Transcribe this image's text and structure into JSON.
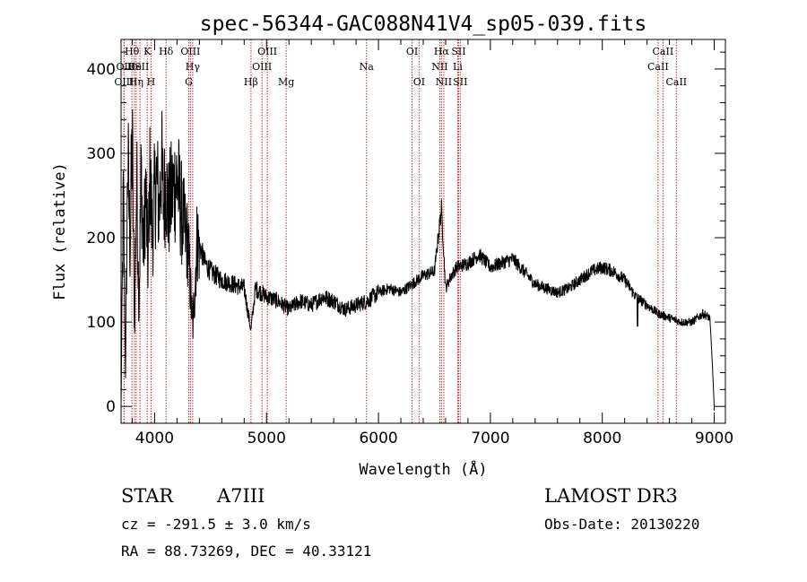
{
  "chart_data": {
    "type": "line",
    "title": "spec-56344-GAC088N41V4_sp05-039.fits",
    "xlabel": "Wavelength (Å)",
    "ylabel": "Flux (relative)",
    "xlim": [
      3700,
      9100
    ],
    "ylim": [
      -200,
      4350
    ],
    "xticks": [
      4000,
      5000,
      6000,
      7000,
      8000,
      9000
    ],
    "yticks": [
      0,
      1000,
      2000,
      3000,
      4000
    ],
    "ytick_labels": [
      "0",
      "100",
      "200",
      "300",
      "400"
    ],
    "series": [
      {
        "name": "flux",
        "anchors": [
          [
            3700,
            0
          ],
          [
            3720,
            2500
          ],
          [
            3740,
            400
          ],
          [
            3760,
            3000
          ],
          [
            3780,
            1900
          ],
          [
            3800,
            3200
          ],
          [
            3820,
            900
          ],
          [
            3840,
            2700
          ],
          [
            3860,
            1200
          ],
          [
            3880,
            2800
          ],
          [
            3900,
            1800
          ],
          [
            3920,
            2600
          ],
          [
            3940,
            1700
          ],
          [
            3960,
            2800
          ],
          [
            3980,
            2000
          ],
          [
            4000,
            2500
          ],
          [
            4020,
            2700
          ],
          [
            4040,
            2300
          ],
          [
            4060,
            2900
          ],
          [
            4080,
            2400
          ],
          [
            4100,
            2700
          ],
          [
            4120,
            2300
          ],
          [
            4150,
            2500
          ],
          [
            4200,
            2700
          ],
          [
            4250,
            2200
          ],
          [
            4300,
            1900
          ],
          [
            4340,
            900
          ],
          [
            4380,
            2000
          ],
          [
            4450,
            1700
          ],
          [
            4500,
            1600
          ],
          [
            4600,
            1500
          ],
          [
            4700,
            1450
          ],
          [
            4800,
            1400
          ],
          [
            4861,
            900
          ],
          [
            4900,
            1400
          ],
          [
            5000,
            1300
          ],
          [
            5100,
            1250
          ],
          [
            5200,
            1150
          ],
          [
            5300,
            1250
          ],
          [
            5400,
            1200
          ],
          [
            5500,
            1300
          ],
          [
            5600,
            1250
          ],
          [
            5700,
            1150
          ],
          [
            5800,
            1200
          ],
          [
            5900,
            1250
          ],
          [
            6000,
            1350
          ],
          [
            6100,
            1400
          ],
          [
            6200,
            1350
          ],
          [
            6300,
            1450
          ],
          [
            6400,
            1550
          ],
          [
            6500,
            1600
          ],
          [
            6563,
            2350
          ],
          [
            6600,
            1400
          ],
          [
            6650,
            1550
          ],
          [
            6700,
            1650
          ],
          [
            6800,
            1700
          ],
          [
            6900,
            1800
          ],
          [
            7000,
            1650
          ],
          [
            7100,
            1700
          ],
          [
            7200,
            1750
          ],
          [
            7300,
            1600
          ],
          [
            7400,
            1450
          ],
          [
            7500,
            1400
          ],
          [
            7600,
            1350
          ],
          [
            7700,
            1400
          ],
          [
            7800,
            1500
          ],
          [
            7900,
            1600
          ],
          [
            8000,
            1650
          ],
          [
            8100,
            1600
          ],
          [
            8200,
            1500
          ],
          [
            8300,
            1300
          ],
          [
            8400,
            1200
          ],
          [
            8500,
            1100
          ],
          [
            8600,
            1050
          ],
          [
            8700,
            1000
          ],
          [
            8800,
            1000
          ],
          [
            8900,
            1100
          ],
          [
            8960,
            1050
          ],
          [
            8980,
            600
          ],
          [
            9000,
            0
          ]
        ]
      }
    ],
    "lines": [
      {
        "label": "Hθ",
        "wl": 3797,
        "row": 1
      },
      {
        "label": "OII",
        "wl": 3727,
        "row": 2
      },
      {
        "label": "He",
        "wl": 3820,
        "row": 2
      },
      {
        "label": "OIII",
        "wl": 3727,
        "row": 3
      },
      {
        "label": "Hη",
        "wl": 3835,
        "row": 3
      },
      {
        "label": "K",
        "wl": 3934,
        "row": 1
      },
      {
        "label": "ISII",
        "wl": 3869,
        "row": 2
      },
      {
        "label": "H",
        "wl": 3968,
        "row": 3
      },
      {
        "label": "Hδ",
        "wl": 4102,
        "row": 1
      },
      {
        "label": "OIII",
        "wl": 4320,
        "row": 1
      },
      {
        "label": "Hγ",
        "wl": 4340,
        "row": 2
      },
      {
        "label": "G",
        "wl": 4305,
        "row": 3
      },
      {
        "label": "OIII",
        "wl": 5007,
        "row": 1
      },
      {
        "label": "OIII",
        "wl": 4959,
        "row": 2
      },
      {
        "label": "Hβ",
        "wl": 4861,
        "row": 3
      },
      {
        "label": "Mg",
        "wl": 5175,
        "row": 3
      },
      {
        "label": "Na",
        "wl": 5893,
        "row": 2
      },
      {
        "label": "OI",
        "wl": 6300,
        "row": 1
      },
      {
        "label": "OI",
        "wl": 6363,
        "row": 3
      },
      {
        "label": "Hα",
        "wl": 6563,
        "row": 1
      },
      {
        "label": "SII",
        "wl": 6716,
        "row": 1
      },
      {
        "label": "NII",
        "wl": 6548,
        "row": 2
      },
      {
        "label": "Li",
        "wl": 6708,
        "row": 2
      },
      {
        "label": "NII",
        "wl": 6584,
        "row": 3
      },
      {
        "label": "SII",
        "wl": 6731,
        "row": 3
      },
      {
        "label": "CaII",
        "wl": 8542,
        "row": 1
      },
      {
        "label": "CaII",
        "wl": 8498,
        "row": 2
      },
      {
        "label": "CaII",
        "wl": 8662,
        "row": 3
      }
    ]
  },
  "info": {
    "object_class": "STAR",
    "subclass": "A7III",
    "survey": "LAMOST DR3",
    "redshift": "cz = -291.5 ± 3.0 km/s",
    "obs_date": "Obs-Date: 20130220",
    "coords": "RA =  88.73269, DEC =  40.33121"
  }
}
